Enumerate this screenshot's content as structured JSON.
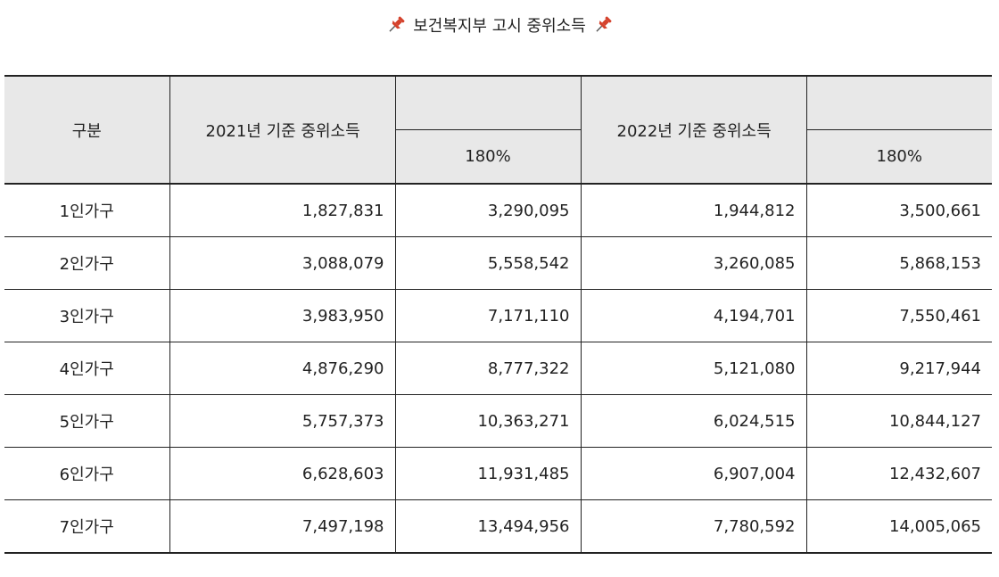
{
  "title": {
    "left_icon": "pushpin-icon",
    "text": "보건복지부 고시 중위소득",
    "right_icon": "pushpin-icon"
  },
  "colors": {
    "header_background": "#e8e8e8",
    "border": "#222222",
    "pin_red": "#d4412b"
  },
  "table": {
    "header": {
      "category": "구분",
      "group_2021": "2021년 기준 중위소득",
      "group_2022": "2022년 기준 중위소득",
      "sub_180_2021": "180%",
      "sub_180_2022": "180%"
    },
    "rows": [
      {
        "label": "1인가구",
        "m2021": "1,827,831",
        "p2021": "3,290,095",
        "m2022": "1,944,812",
        "p2022": "3,500,661"
      },
      {
        "label": "2인가구",
        "m2021": "3,088,079",
        "p2021": "5,558,542",
        "m2022": "3,260,085",
        "p2022": "5,868,153"
      },
      {
        "label": "3인가구",
        "m2021": "3,983,950",
        "p2021": "7,171,110",
        "m2022": "4,194,701",
        "p2022": "7,550,461"
      },
      {
        "label": "4인가구",
        "m2021": "4,876,290",
        "p2021": "8,777,322",
        "m2022": "5,121,080",
        "p2022": "9,217,944"
      },
      {
        "label": "5인가구",
        "m2021": "5,757,373",
        "p2021": "10,363,271",
        "m2022": "6,024,515",
        "p2022": "10,844,127"
      },
      {
        "label": "6인가구",
        "m2021": "6,628,603",
        "p2021": "11,931,485",
        "m2022": "6,907,004",
        "p2022": "12,432,607"
      },
      {
        "label": "7인가구",
        "m2021": "7,497,198",
        "p2021": "13,494,956",
        "m2022": "7,780,592",
        "p2022": "14,005,065"
      }
    ]
  }
}
